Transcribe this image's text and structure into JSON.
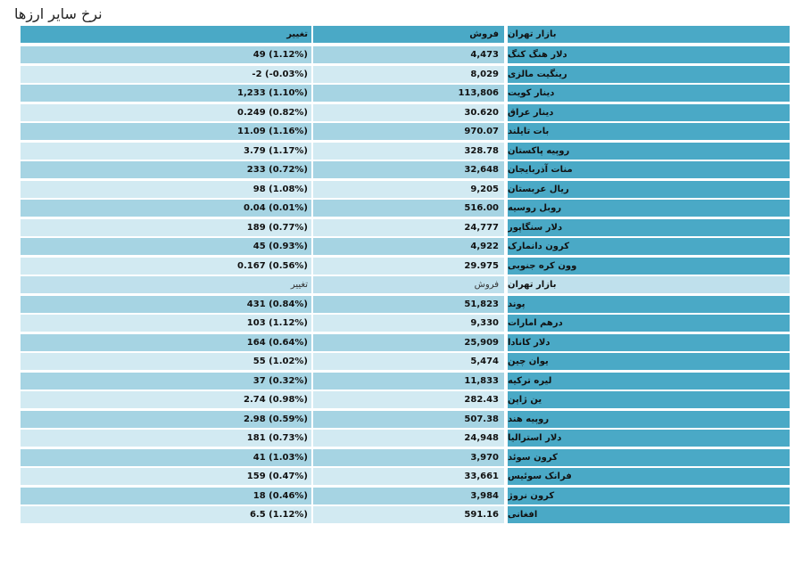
{
  "page_title": "نرخ سایر ارزها",
  "header": {
    "market": "بازار تهران",
    "sell": "فروش",
    "change": "تغییر"
  },
  "group1": [
    {
      "name": "دلار هنگ کنگ",
      "sell": "4,473",
      "change": "49 (1.12%)"
    },
    {
      "name": "رینگیت مالزی",
      "sell": "8,029",
      "change": "-2 (-0.03%)"
    },
    {
      "name": "دینار کویت",
      "sell": "113,806",
      "change": "1,233 (1.10%)"
    },
    {
      "name": "دینار عراق",
      "sell": "30.620",
      "change": "0.249 (0.82%)"
    },
    {
      "name": "بات تایلند",
      "sell": "970.07",
      "change": "11.09 (1.16%)"
    },
    {
      "name": "روپیه پاکستان",
      "sell": "328.78",
      "change": "3.79 (1.17%)"
    },
    {
      "name": "منات آذربایجان",
      "sell": "32,648",
      "change": "233 (0.72%)"
    },
    {
      "name": "ریال عربستان",
      "sell": "9,205",
      "change": "98 (1.08%)"
    },
    {
      "name": "روبل روسیه",
      "sell": "516.00",
      "change": "0.04 (0.01%)"
    },
    {
      "name": "دلار سنگاپور",
      "sell": "24,777",
      "change": "189 (0.77%)"
    },
    {
      "name": "کرون دانمارک",
      "sell": "4,922",
      "change": "45 (0.93%)"
    },
    {
      "name": "وون کره جنوبی",
      "sell": "29.975",
      "change": "0.167 (0.56%)"
    }
  ],
  "subheader": {
    "market": "بازار تهران",
    "sell": "فروش",
    "change": "تغییر"
  },
  "group2": [
    {
      "name": "پوند",
      "sell": "51,823",
      "change": "431 (0.84%)"
    },
    {
      "name": "درهم امارات",
      "sell": "9,330",
      "change": "103 (1.12%)"
    },
    {
      "name": "دلار کانادا",
      "sell": "25,909",
      "change": "164 (0.64%)"
    },
    {
      "name": "یوان چین",
      "sell": "5,474",
      "change": "55 (1.02%)"
    },
    {
      "name": "لیره ترکیه",
      "sell": "11,833",
      "change": "37 (0.32%)"
    },
    {
      "name": "ین ژاپن",
      "sell": "282.43",
      "change": "2.74 (0.98%)"
    },
    {
      "name": "روپیه هند",
      "sell": "507.38",
      "change": "2.98 (0.59%)"
    },
    {
      "name": "دلار استرالیا",
      "sell": "24,948",
      "change": "181 (0.73%)"
    },
    {
      "name": "کرون سوئد",
      "sell": "3,970",
      "change": "41 (1.03%)"
    },
    {
      "name": "فرانک سوئیس",
      "sell": "33,661",
      "change": "159 (0.47%)"
    },
    {
      "name": "کرون نروژ",
      "sell": "3,984",
      "change": "18 (0.46%)"
    },
    {
      "name": "افغانی",
      "sell": "591.16",
      "change": "6.5 (1.12%)"
    }
  ]
}
